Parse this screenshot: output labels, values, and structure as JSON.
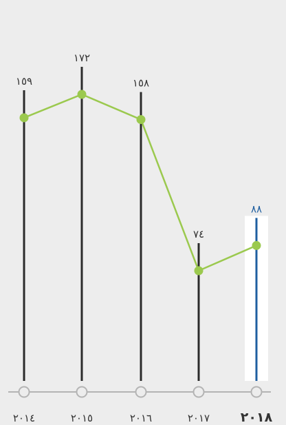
{
  "chart_data": {
    "type": "line",
    "categories": [
      "٢٠١٤",
      "٢٠١٥",
      "٢٠١٦",
      "٢٠١٧",
      "٢٠١٨"
    ],
    "value_labels": [
      "١٥٩",
      "١٧٢",
      "١٥٨",
      "٧٤",
      "٨٨"
    ],
    "values": [
      159,
      172,
      158,
      74,
      88
    ],
    "highlight_index": 4,
    "ylim": [
      0,
      200
    ],
    "colors": {
      "background": "#ededed",
      "line": "#9bc94e",
      "stem": "#2b2b2b",
      "highlight": "#1f5fa0",
      "highlight_band": "#ffffff",
      "axis": "#b4b4b4",
      "text": "#333333"
    }
  }
}
